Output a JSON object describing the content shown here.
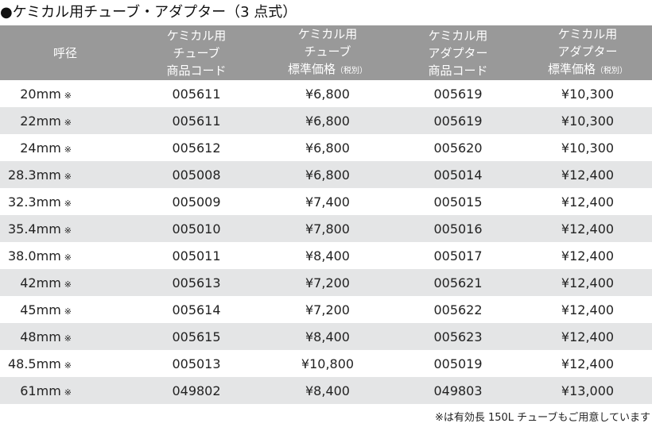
{
  "title": "●ケミカル用チューブ・アダプター（3 点式）",
  "headers": {
    "size": "呼径",
    "tube_code": [
      "ケミカル用",
      "チューブ",
      "商品コード"
    ],
    "tube_price": [
      "ケミカル用",
      "チューブ",
      "標準価格",
      "（税別）"
    ],
    "adapter_code": [
      "ケミカル用",
      "アダプター",
      "商品コード"
    ],
    "adapter_price": [
      "ケミカル用",
      "アダプター",
      "標準価格",
      "（税別）"
    ]
  },
  "mark": "※",
  "rows": [
    {
      "size": "20mm",
      "tube_code": "005611",
      "tube_price": "¥6,800",
      "adapter_code": "005619",
      "adapter_price": "¥10,300"
    },
    {
      "size": "22mm",
      "tube_code": "005611",
      "tube_price": "¥6,800",
      "adapter_code": "005619",
      "adapter_price": "¥10,300"
    },
    {
      "size": "24mm",
      "tube_code": "005612",
      "tube_price": "¥6,800",
      "adapter_code": "005620",
      "adapter_price": "¥10,300"
    },
    {
      "size": "28.3mm",
      "tube_code": "005008",
      "tube_price": "¥6,800",
      "adapter_code": "005014",
      "adapter_price": "¥12,400"
    },
    {
      "size": "32.3mm",
      "tube_code": "005009",
      "tube_price": "¥7,400",
      "adapter_code": "005015",
      "adapter_price": "¥12,400"
    },
    {
      "size": "35.4mm",
      "tube_code": "005010",
      "tube_price": "¥7,800",
      "adapter_code": "005016",
      "adapter_price": "¥12,400"
    },
    {
      "size": "38.0mm",
      "tube_code": "005011",
      "tube_price": "¥8,400",
      "adapter_code": "005017",
      "adapter_price": "¥12,400"
    },
    {
      "size": "42mm",
      "tube_code": "005613",
      "tube_price": "¥7,200",
      "adapter_code": "005621",
      "adapter_price": "¥12,400"
    },
    {
      "size": "45mm",
      "tube_code": "005614",
      "tube_price": "¥7,200",
      "adapter_code": "005622",
      "adapter_price": "¥12,400"
    },
    {
      "size": "48mm",
      "tube_code": "005615",
      "tube_price": "¥8,400",
      "adapter_code": "005623",
      "adapter_price": "¥12,400"
    },
    {
      "size": "48.5mm",
      "tube_code": "005013",
      "tube_price": "¥10,800",
      "adapter_code": "005019",
      "adapter_price": "¥12,400"
    },
    {
      "size": "61mm",
      "tube_code": "049802",
      "tube_price": "¥8,400",
      "adapter_code": "049803",
      "adapter_price": "¥13,000"
    }
  ],
  "note": "※は有効長 150L チューブもご用意しています"
}
